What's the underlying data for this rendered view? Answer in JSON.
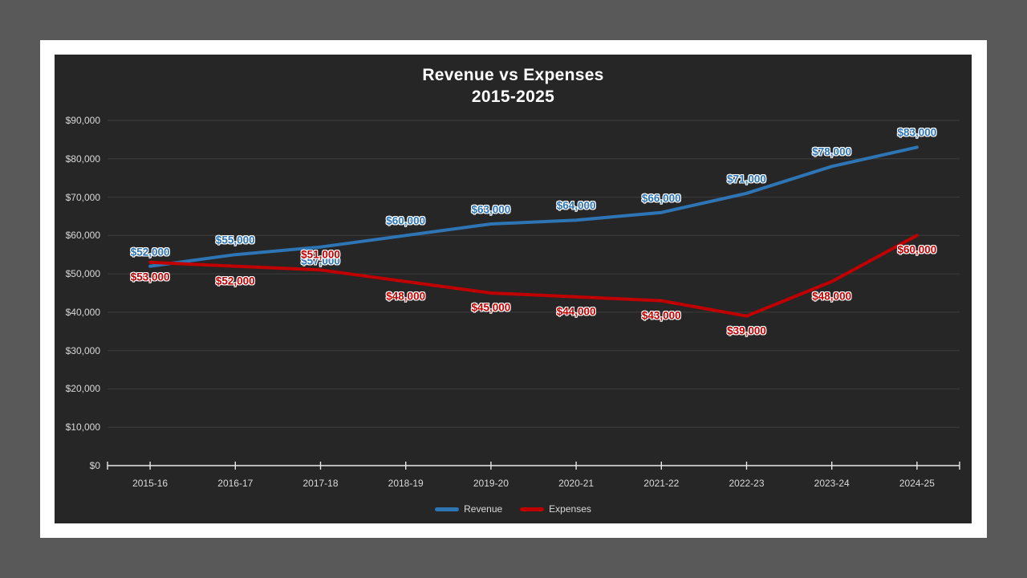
{
  "window": {
    "workspace_background": "#595959",
    "slide_background": "#ffffff",
    "chart_background": "#262626"
  },
  "chart_data": {
    "type": "line",
    "title": "Revenue vs Expenses",
    "subtitle": "2015-2025",
    "categories": [
      "2015-16",
      "2016-17",
      "2017-18",
      "2018-19",
      "2019-20",
      "2020-21",
      "2021-22",
      "2022-23",
      "2023-24",
      "2024-25"
    ],
    "series": [
      {
        "name": "Revenue",
        "color": "#2E75B6",
        "values": [
          52000,
          55000,
          57000,
          60000,
          63000,
          64000,
          66000,
          71000,
          78000,
          83000
        ],
        "labels": [
          "$52,000",
          "$55,000",
          "$57,000",
          "$60,000",
          "$63,000",
          "$64,000",
          "$66,000",
          "$71,000",
          "$78,000",
          "$83,000"
        ]
      },
      {
        "name": "Expenses",
        "color": "#C00000",
        "values": [
          53000,
          52000,
          51000,
          48000,
          45000,
          44000,
          43000,
          39000,
          48000,
          60000
        ],
        "labels": [
          "$53,000",
          "$52,000",
          "$51,000",
          "$48,000",
          "$45,000",
          "$44,000",
          "$43,000",
          "$39,000",
          "$48,000",
          "$60,000"
        ]
      }
    ],
    "y_axis": {
      "min": 0,
      "max": 90000,
      "step": 10000,
      "tick_labels": [
        "$0",
        "$10,000",
        "$20,000",
        "$30,000",
        "$40,000",
        "$50,000",
        "$60,000",
        "$70,000",
        "$80,000",
        "$90,000"
      ]
    },
    "grid": true,
    "legend_position": "bottom",
    "colors": {
      "gridline": "#3d3d3d",
      "axis_line": "#e8e8e8",
      "tick_label": "#d9d9d9",
      "title": "#ffffff",
      "label_outline": "#ffffff"
    }
  }
}
